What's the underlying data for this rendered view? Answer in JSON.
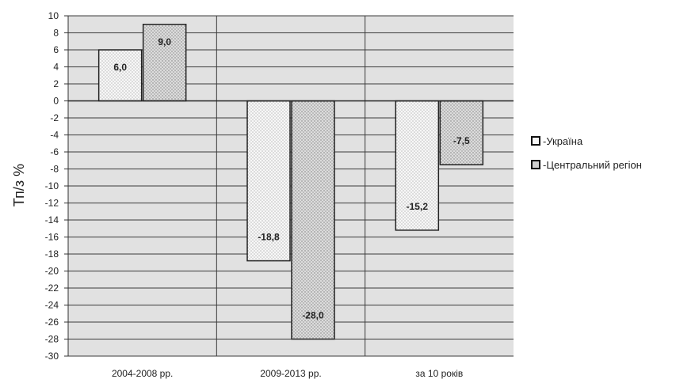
{
  "chart_data": {
    "type": "bar",
    "categories": [
      "2004-2008 pp.",
      "2009-2013 pp.",
      "за 10 років"
    ],
    "series": [
      {
        "name": "Україна",
        "values": [
          6.0,
          -18.8,
          -15.2
        ]
      },
      {
        "name": "Центральний регіон",
        "values": [
          9.0,
          -28.0,
          -7.5
        ]
      }
    ],
    "data_labels": [
      [
        "6,0",
        "-18,8",
        "-15,2"
      ],
      [
        "9,0",
        "-28,0",
        "-7,5"
      ]
    ],
    "ylabel": "Тп/з %",
    "ylim": [
      -30,
      10
    ],
    "ytick_step": 2,
    "grid": true,
    "legend_position": "right",
    "legend_prefix": "- ",
    "colors": {
      "plot_background": "#e1e1e1",
      "gridline": "#3a3a3a",
      "bar_border": "#222222",
      "series_fill": [
        "#f7f7f7",
        "#dcdcdc"
      ]
    }
  }
}
